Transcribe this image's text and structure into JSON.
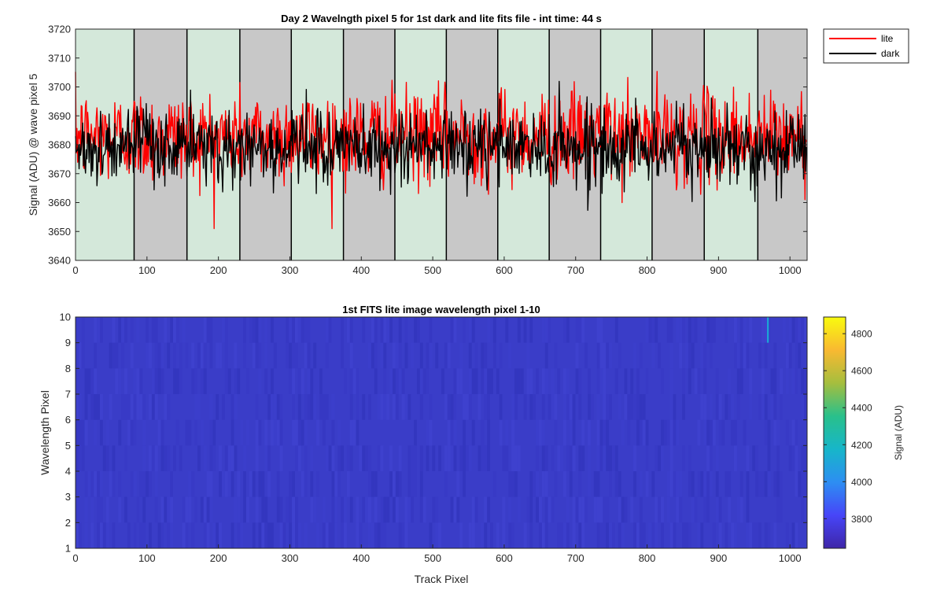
{
  "colors": {
    "lite": "#ff0000",
    "dark": "#000000",
    "band_green": "#d4e8da",
    "band_gray": "#c8c8c8",
    "heatmap_base": "#3a3dc8",
    "colormap": [
      "#3e26a8",
      "#4745f8",
      "#2d8ef2",
      "#17b6c9",
      "#29c08b",
      "#a5be3e",
      "#f9b931",
      "#f9fb0e"
    ]
  },
  "chart_data": [
    {
      "type": "line",
      "title": "Day 2 Wavelngth pixel 5 for 1st dark and lite fits file - int time: 44 s",
      "xlabel": "",
      "ylabel": "Signal (ADU) @ wave pixel 5",
      "xlim": [
        0,
        1024
      ],
      "ylim": [
        3640,
        3720
      ],
      "xticks": [
        "0",
        "100",
        "200",
        "300",
        "400",
        "500",
        "600",
        "700",
        "800",
        "900",
        "1000"
      ],
      "yticks": [
        "3640",
        "3650",
        "3660",
        "3670",
        "3680",
        "3690",
        "3700",
        "3710",
        "3720"
      ],
      "legend_position": "outside top-right",
      "band_edges": [
        0,
        82,
        156,
        230,
        302,
        375,
        447,
        519,
        591,
        663,
        735,
        807,
        880,
        955,
        1024
      ],
      "band_colors": [
        "green",
        "gray",
        "green",
        "gray",
        "green",
        "gray",
        "green",
        "gray",
        "green",
        "gray",
        "green",
        "gray",
        "green",
        "gray"
      ],
      "series": [
        {
          "name": "lite",
          "color": "#ff0000",
          "x_range": [
            0,
            1023
          ],
          "mean": 3683,
          "std": 8,
          "min": 3651,
          "max": 3716
        },
        {
          "name": "dark",
          "color": "#000000",
          "x_range": [
            0,
            1023
          ],
          "mean": 3679,
          "std": 6.5,
          "min": 3646,
          "max": 3711
        }
      ]
    },
    {
      "type": "heatmap",
      "title": "1st FITS lite image wavelength pixel 1-10",
      "xlabel": "Track Pixel",
      "ylabel": "Wavelength Pixel",
      "xlim": [
        0,
        1024
      ],
      "ylim": [
        1,
        10
      ],
      "xticks": [
        "0",
        "100",
        "200",
        "300",
        "400",
        "500",
        "600",
        "700",
        "800",
        "900",
        "1000"
      ],
      "yticks": [
        "1",
        "2",
        "3",
        "4",
        "5",
        "6",
        "7",
        "8",
        "9",
        "10"
      ],
      "colorbar": {
        "label": "Signal (ADU)",
        "range": [
          3640,
          4890
        ],
        "ticks": [
          "3800",
          "4000",
          "4200",
          "4400",
          "4600",
          "4800"
        ]
      },
      "typical_value": 3680,
      "hot_pixel": {
        "track_pixel": 969,
        "wavelength_pixels": [
          9,
          10
        ],
        "value": 4150
      }
    }
  ]
}
